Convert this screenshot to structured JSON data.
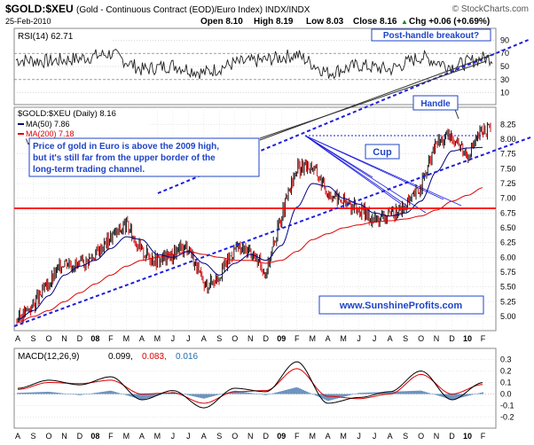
{
  "header": {
    "symbol": "$GOLD:$XEU",
    "description": "(Gold - Continuous Contract (EOD)/Euro Index)  INDX/INDX",
    "date": "25-Feb-2010",
    "open": "Open 8.10",
    "high": "High 8.19",
    "low": "Low 8.03",
    "close": "Close 8.16",
    "chg": "Chg +0.06 (+0.69%)",
    "chg_arrow": "▲",
    "copyright": "© StockCharts.com"
  },
  "rsi_panel": {
    "label": "RSI(14) 62.71",
    "ticks": [
      "90",
      "70",
      "50",
      "30",
      "10"
    ],
    "callout": "Post-handle breakout?"
  },
  "price_panel": {
    "legend_main": "$GOLD:$XEU (Daily) 8.16",
    "legend_ma50": "MA(50) 7.86",
    "legend_ma200": "MA(200) 7.18",
    "legend_volume_fragment": "V",
    "ticks": [
      "8.25",
      "8.00",
      "7.75",
      "7.50",
      "7.25",
      "7.00",
      "6.75",
      "6.50",
      "6.25",
      "6.00",
      "5.75",
      "5.50",
      "5.25",
      "5.00"
    ],
    "annotation_lines": [
      "Price of gold in Euro is above the 2009 high,",
      "but it's still far from the upper border of the",
      "long-term trading channel."
    ],
    "label_cup": "Cup",
    "label_handle": "Handle",
    "watermark": "www.SunshineProfits.com"
  },
  "macd_panel": {
    "label": "MACD(12,26,9)",
    "v1": "0.099,",
    "v2": "0.083,",
    "v3": "0.016",
    "ticks": [
      "0.3",
      "0.2",
      "0.1",
      "0.0",
      "-0.1",
      "-0.2"
    ]
  },
  "x_axis": {
    "labels": [
      "A",
      "S",
      "O",
      "N",
      "D",
      "08",
      "F",
      "M",
      "A",
      "M",
      "J",
      "J",
      "A",
      "S",
      "O",
      "N",
      "D",
      "09",
      "F",
      "M",
      "A",
      "M",
      "J",
      "J",
      "A",
      "S",
      "O",
      "N",
      "D",
      "10",
      "F"
    ]
  },
  "colors": {
    "price_bars": "#000000",
    "down_bars": "#cc0000",
    "ma50": "#000080",
    "ma200": "#dd0000",
    "support_line": "#ff0000",
    "channel_lines": "#1e1edc",
    "annotation_box": "#1f44c8",
    "macd_signal": "#dd0000",
    "macd_hist": "#4a7ab0"
  },
  "chart_data": [
    {
      "type": "line",
      "title": "RSI(14)",
      "ylim": [
        0,
        100
      ],
      "x": [
        "2007-08",
        "2007-10",
        "2007-12",
        "2008-02",
        "2008-04",
        "2008-06",
        "2008-08",
        "2008-10",
        "2008-12",
        "2009-02",
        "2009-04",
        "2009-06",
        "2009-08",
        "2009-10",
        "2009-12",
        "2010-02"
      ],
      "series": [
        {
          "name": "RSI(14)",
          "values": [
            60,
            58,
            62,
            70,
            45,
            52,
            40,
            55,
            60,
            68,
            40,
            52,
            45,
            65,
            50,
            62.71
          ]
        }
      ]
    },
    {
      "type": "line",
      "title": "$GOLD:$XEU (Daily)",
      "ylim": [
        4.85,
        8.45
      ],
      "x": [
        "2007-08",
        "2007-09",
        "2007-10",
        "2007-11",
        "2007-12",
        "2008-01",
        "2008-02",
        "2008-03",
        "2008-04",
        "2008-05",
        "2008-06",
        "2008-07",
        "2008-08",
        "2008-09",
        "2008-10",
        "2008-11",
        "2008-12",
        "2009-01",
        "2009-02",
        "2009-03",
        "2009-04",
        "2009-05",
        "2009-06",
        "2009-07",
        "2009-08",
        "2009-09",
        "2009-10",
        "2009-11",
        "2009-12",
        "2010-01",
        "2010-02"
      ],
      "series": [
        {
          "name": "$GOLD:$XEU",
          "values": [
            4.95,
            5.2,
            5.55,
            5.95,
            5.85,
            6.05,
            6.35,
            6.55,
            6.1,
            5.95,
            6.05,
            6.2,
            5.5,
            5.7,
            6.15,
            6.1,
            5.75,
            6.7,
            7.5,
            7.55,
            7.1,
            6.95,
            6.8,
            6.65,
            6.7,
            6.85,
            7.2,
            7.95,
            8.05,
            7.75,
            8.16
          ]
        },
        {
          "name": "MA(50)",
          "values": [
            4.95,
            5.1,
            5.35,
            5.7,
            5.85,
            5.95,
            6.15,
            6.35,
            6.3,
            6.05,
            6.0,
            6.1,
            5.9,
            5.7,
            5.9,
            6.05,
            5.95,
            6.2,
            6.85,
            7.25,
            7.2,
            7.0,
            6.9,
            6.75,
            6.7,
            6.75,
            6.95,
            7.45,
            7.8,
            7.85,
            7.86
          ]
        },
        {
          "name": "MA(200)",
          "values": [
            4.9,
            5.0,
            5.1,
            5.25,
            5.4,
            5.55,
            5.7,
            5.85,
            5.95,
            6.0,
            6.05,
            6.1,
            6.05,
            6.0,
            5.95,
            5.95,
            5.9,
            5.95,
            6.1,
            6.3,
            6.4,
            6.5,
            6.55,
            6.6,
            6.62,
            6.65,
            6.7,
            6.8,
            6.95,
            7.05,
            7.18
          ]
        }
      ]
    },
    {
      "type": "line",
      "title": "MACD(12,26,9)",
      "ylim": [
        -0.25,
        0.35
      ],
      "x": [
        "2007-08",
        "2007-10",
        "2007-12",
        "2008-02",
        "2008-04",
        "2008-06",
        "2008-08",
        "2008-10",
        "2008-12",
        "2009-02",
        "2009-04",
        "2009-06",
        "2009-08",
        "2009-10",
        "2009-12",
        "2010-02"
      ],
      "series": [
        {
          "name": "MACD",
          "values": [
            0.05,
            0.12,
            0.08,
            0.15,
            -0.05,
            0.03,
            -0.12,
            0.05,
            0.02,
            0.28,
            -0.08,
            -0.03,
            0.02,
            0.2,
            -0.05,
            0.099
          ]
        },
        {
          "name": "Signal",
          "values": [
            0.04,
            0.1,
            0.09,
            0.12,
            0.0,
            0.01,
            -0.08,
            0.02,
            0.03,
            0.22,
            -0.02,
            -0.04,
            0.0,
            0.17,
            0.0,
            0.083
          ]
        }
      ]
    }
  ]
}
